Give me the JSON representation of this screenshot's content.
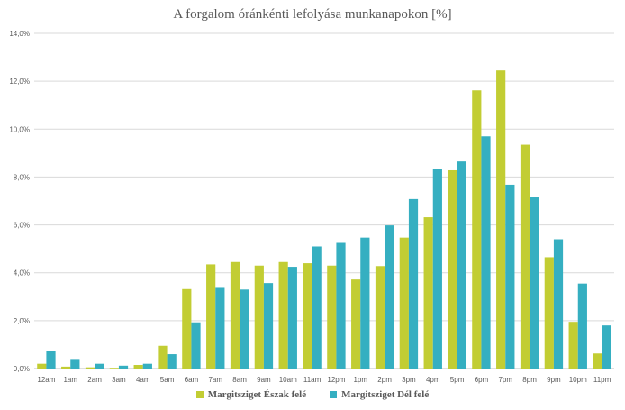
{
  "chart_data": {
    "type": "bar",
    "title": "A forgalom óránkénti lefolyása munkanapokon [%]",
    "xlabel": "",
    "ylabel": "",
    "ylim": [
      0,
      14
    ],
    "yticks": [
      "0,0%",
      "2,0%",
      "4,0%",
      "6,0%",
      "8,0%",
      "10,0%",
      "12,0%",
      "14,0%"
    ],
    "ytick_values": [
      0,
      2,
      4,
      6,
      8,
      10,
      12,
      14
    ],
    "grid": true,
    "legend_position": "bottom",
    "categories": [
      "12am",
      "1am",
      "2am",
      "3am",
      "4am",
      "5am",
      "6am",
      "7am",
      "8am",
      "9am",
      "10am",
      "11am",
      "12pm",
      "1pm",
      "2pm",
      "3pm",
      "4pm",
      "5pm",
      "6pm",
      "7pm",
      "8pm",
      "9pm",
      "10pm",
      "11pm"
    ],
    "series": [
      {
        "name": "Margitsziget Észak felé",
        "color": "#c2cd33",
        "values": [
          0.2,
          0.08,
          0.05,
          0.03,
          0.15,
          0.95,
          3.32,
          4.35,
          4.45,
          4.3,
          4.45,
          4.4,
          4.3,
          3.72,
          4.28,
          5.47,
          6.32,
          8.28,
          11.62,
          12.45,
          9.35,
          4.65,
          1.95,
          0.63
        ]
      },
      {
        "name": "Margitsziget Dél felé",
        "color": "#35afc1",
        "values": [
          0.72,
          0.4,
          0.2,
          0.12,
          0.2,
          0.6,
          1.93,
          3.37,
          3.3,
          3.57,
          4.25,
          5.1,
          5.25,
          5.47,
          5.98,
          7.08,
          8.35,
          8.65,
          9.7,
          7.68,
          7.15,
          5.4,
          3.55,
          1.8
        ]
      }
    ]
  }
}
